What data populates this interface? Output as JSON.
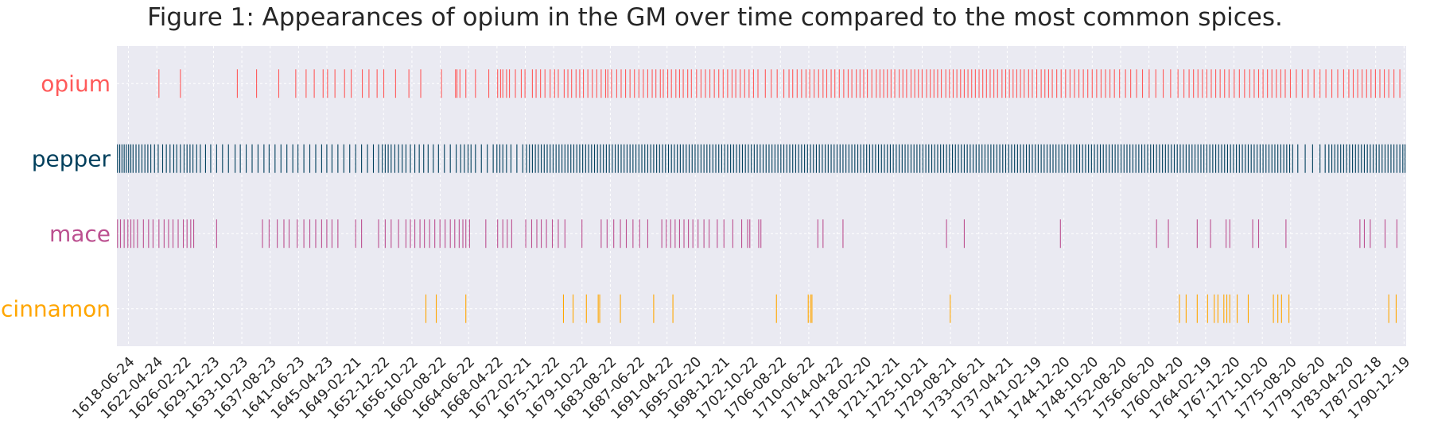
{
  "title": "Figure 1: Appearances of opium in the GM over time compared to the most common spices.",
  "colors": {
    "background": "#eaeaf2",
    "grid": "#ffffff",
    "text": "#262626"
  },
  "chart_data": {
    "type": "eventplot",
    "title": "Figure 1: Appearances of opium in the GM over time compared to the most common spices.",
    "xlabel": "",
    "ylabel": "",
    "xlim": [
      "1616-12-01",
      "1791-04-01"
    ],
    "grid": true,
    "x_ticks": [
      "1618-06-24",
      "1622-04-24",
      "1626-02-22",
      "1629-12-23",
      "1633-10-23",
      "1637-08-23",
      "1641-06-23",
      "1645-04-23",
      "1649-02-21",
      "1652-12-22",
      "1656-10-22",
      "1660-08-22",
      "1664-06-22",
      "1668-04-22",
      "1672-02-21",
      "1675-12-22",
      "1679-10-22",
      "1683-08-22",
      "1687-06-22",
      "1691-04-22",
      "1695-02-20",
      "1698-12-21",
      "1702-10-22",
      "1706-08-22",
      "1710-06-22",
      "1714-04-22",
      "1718-02-20",
      "1721-12-21",
      "1725-10-21",
      "1729-08-21",
      "1733-06-21",
      "1737-04-21",
      "1741-02-19",
      "1744-12-20",
      "1748-10-20",
      "1752-08-20",
      "1756-06-20",
      "1760-04-20",
      "1764-02-19",
      "1767-12-20",
      "1771-10-20",
      "1775-08-20",
      "1779-06-20",
      "1783-04-20",
      "1787-02-18",
      "1790-12-19"
    ],
    "series": [
      {
        "name": "opium",
        "color": "#ff5a5a",
        "years": [
          1622.6,
          1625.5,
          1633.2,
          1635.8,
          1638.8,
          1641.1,
          1642.5,
          1643.6,
          1644.8,
          1645.4,
          1646.4,
          1647.7,
          1648.6,
          1650.1,
          1651.0,
          1652.1,
          1653.0,
          1654.6,
          1656.4,
          1658.0,
          1660.8,
          1662.7,
          1662.9,
          1663.3,
          1664.1,
          1665.4,
          1667.2,
          1668.4,
          1668.8,
          1669.1,
          1669.6,
          1670.0,
          1670.8,
          1671.6,
          1672.1,
          1673.1,
          1673.6,
          1674.2,
          1674.8,
          1675.5,
          1676.1,
          1676.6,
          1677.4,
          1677.9,
          1678.4,
          1679.0,
          1679.5,
          1680.0,
          1680.6,
          1681.2,
          1681.8,
          1682.4,
          1683.0,
          1683.3,
          1683.8,
          1684.5,
          1685.1,
          1685.7,
          1686.3,
          1686.9,
          1687.5,
          1688.1,
          1688.7,
          1689.3,
          1689.8,
          1690.4,
          1690.8,
          1691.4,
          1691.9,
          1692.5,
          1693.0,
          1693.5,
          1694.1,
          1694.6,
          1695.3,
          1695.9,
          1696.5,
          1697.1,
          1697.7,
          1698.3,
          1698.9,
          1699.5,
          1700.1,
          1700.6,
          1701.2,
          1701.8,
          1702.4,
          1703.0,
          1703.6,
          1704.6,
          1705.4,
          1706.2,
          1707.1,
          1707.8,
          1708.3,
          1708.9,
          1709.5,
          1710.1,
          1710.6,
          1711.2,
          1711.8,
          1712.4,
          1712.9,
          1713.5,
          1714.0,
          1714.6,
          1715.2,
          1715.8,
          1716.3,
          1716.9,
          1717.4,
          1717.9,
          1718.4,
          1719.0,
          1719.6,
          1720.1,
          1720.6,
          1721.1,
          1721.6,
          1722.1,
          1722.7,
          1723.2,
          1723.7,
          1724.3,
          1724.8,
          1725.3,
          1725.8,
          1726.4,
          1726.9,
          1727.4,
          1727.9,
          1728.4,
          1729.0,
          1729.5,
          1730.0,
          1730.5,
          1731.0,
          1731.5,
          1732.0,
          1732.5,
          1733.0,
          1733.5,
          1734.0,
          1734.5,
          1735.0,
          1735.5,
          1736.0,
          1736.6,
          1737.1,
          1737.6,
          1738.1,
          1738.6,
          1739.1,
          1739.6,
          1740.2,
          1740.7,
          1741.3,
          1741.9,
          1742.4,
          1742.9,
          1743.4,
          1744.0,
          1744.6,
          1745.2,
          1745.8,
          1746.4,
          1747.0,
          1747.6,
          1748.2,
          1748.8,
          1749.4,
          1750.0,
          1750.6,
          1751.2,
          1751.8,
          1752.5,
          1753.3,
          1754.0,
          1754.8,
          1755.6,
          1756.5,
          1757.4,
          1758.4,
          1759.4,
          1760.4,
          1761.2,
          1761.9,
          1762.5,
          1763.1,
          1763.7,
          1764.3,
          1764.9,
          1765.5,
          1766.1,
          1766.7,
          1767.3,
          1768.0,
          1768.7,
          1769.4,
          1770.1,
          1770.7,
          1771.3,
          1771.9,
          1772.5,
          1773.1,
          1773.7,
          1774.3,
          1774.9,
          1775.6,
          1776.4,
          1777.2,
          1778.0,
          1778.8,
          1779.6,
          1780.4,
          1781.2,
          1782.0,
          1782.8,
          1783.5,
          1784.1,
          1784.7,
          1785.3,
          1785.9,
          1786.5,
          1787.1,
          1787.7,
          1788.3,
          1788.9,
          1789.6,
          1790.4
        ]
      },
      {
        "name": "pepper",
        "color": "#003f5c",
        "years": [
          1617.0,
          1617.3,
          1617.6,
          1617.9,
          1618.2,
          1618.5,
          1618.8,
          1619.1,
          1619.5,
          1619.9,
          1620.3,
          1620.7,
          1621.1,
          1621.5,
          1622.0,
          1622.5,
          1623.1,
          1623.6,
          1624.1,
          1624.6,
          1625.0,
          1625.5,
          1626.0,
          1626.4,
          1626.8,
          1627.2,
          1627.7,
          1628.2,
          1628.9,
          1629.6,
          1630.4,
          1631.2,
          1632.0,
          1632.9,
          1633.6,
          1634.4,
          1635.2,
          1636.0,
          1636.8,
          1637.5,
          1638.3,
          1639.1,
          1639.9,
          1640.7,
          1641.4,
          1642.2,
          1643.0,
          1643.8,
          1644.6,
          1645.3,
          1646.0,
          1646.8,
          1647.6,
          1648.4,
          1649.2,
          1650.0,
          1650.8,
          1651.6,
          1652.3,
          1652.8,
          1653.2,
          1653.6,
          1654.0,
          1654.5,
          1655.0,
          1655.5,
          1656.0,
          1656.6,
          1657.2,
          1657.8,
          1658.4,
          1659.0,
          1659.7,
          1660.4,
          1661.2,
          1662.0,
          1662.8,
          1663.4,
          1663.9,
          1664.4,
          1664.8,
          1665.4,
          1666.2,
          1667.0,
          1667.8,
          1668.3,
          1668.7,
          1669.1,
          1669.6,
          1670.2,
          1671.0,
          1671.8,
          1672.3,
          1672.7,
          1673.1,
          1673.5,
          1673.9,
          1674.3,
          1674.7,
          1675.1,
          1675.5,
          1675.9,
          1676.3,
          1676.7,
          1677.1,
          1677.5,
          1677.9,
          1678.3,
          1678.7,
          1679.1,
          1679.5,
          1679.9,
          1680.3,
          1680.7,
          1681.1,
          1681.5,
          1681.9,
          1682.3,
          1682.7,
          1683.1,
          1683.5,
          1683.9,
          1684.3,
          1684.7,
          1685.1,
          1685.5,
          1685.9,
          1686.3,
          1686.7,
          1687.1,
          1687.5,
          1687.9,
          1688.3,
          1688.7,
          1689.1,
          1689.5,
          1689.9,
          1690.3,
          1690.7,
          1691.1,
          1691.5,
          1691.9,
          1692.3,
          1692.7,
          1693.1,
          1693.5,
          1693.9,
          1694.3,
          1694.7,
          1695.1,
          1695.5,
          1695.9,
          1696.3,
          1696.7,
          1697.1,
          1697.5,
          1697.9,
          1698.3,
          1698.7,
          1699.1,
          1699.5,
          1699.9,
          1700.3,
          1700.7,
          1701.1,
          1701.5,
          1701.9,
          1702.3,
          1702.7,
          1703.1,
          1703.5,
          1703.9,
          1704.3,
          1704.7,
          1705.1,
          1705.5,
          1705.9,
          1706.3,
          1706.7,
          1707.1,
          1707.5,
          1707.9,
          1708.3,
          1708.7,
          1709.1,
          1709.5,
          1709.9,
          1710.3,
          1710.7,
          1711.1,
          1711.5,
          1711.9,
          1712.3,
          1712.7,
          1713.1,
          1713.5,
          1713.9,
          1714.3,
          1714.7,
          1715.1,
          1715.5,
          1715.9,
          1716.3,
          1716.7,
          1717.1,
          1717.5,
          1717.9,
          1718.3,
          1718.7,
          1719.1,
          1719.5,
          1719.9,
          1720.3,
          1720.7,
          1721.1,
          1721.5,
          1721.9,
          1722.3,
          1722.7,
          1723.1,
          1723.5,
          1723.9,
          1724.3,
          1724.7,
          1725.1,
          1725.5,
          1725.9,
          1726.3,
          1726.7,
          1727.1,
          1727.5,
          1727.9,
          1728.3,
          1728.7,
          1729.1,
          1729.5,
          1729.9,
          1730.3,
          1730.7,
          1731.1,
          1731.5,
          1731.9,
          1732.3,
          1732.7,
          1733.1,
          1733.5,
          1733.9,
          1734.3,
          1734.7,
          1735.1,
          1735.5,
          1735.9,
          1736.3,
          1736.7,
          1737.1,
          1737.5,
          1737.9,
          1738.3,
          1738.7,
          1739.1,
          1739.5,
          1739.9,
          1740.3,
          1740.7,
          1741.1,
          1741.5,
          1741.9,
          1742.3,
          1742.7,
          1743.1,
          1743.5,
          1743.9,
          1744.3,
          1744.7,
          1745.1,
          1745.5,
          1745.9,
          1746.3,
          1746.7,
          1747.1,
          1747.5,
          1747.9,
          1748.3,
          1748.7,
          1749.1,
          1749.5,
          1749.9,
          1750.3,
          1750.7,
          1751.1,
          1751.5,
          1751.9,
          1752.3,
          1752.7,
          1753.1,
          1753.5,
          1753.9,
          1754.3,
          1754.7,
          1755.1,
          1755.5,
          1755.9,
          1756.3,
          1756.7,
          1757.1,
          1757.5,
          1757.9,
          1758.3,
          1758.7,
          1759.1,
          1759.5,
          1759.9,
          1760.3,
          1760.7,
          1761.1,
          1761.5,
          1761.9,
          1762.3,
          1762.7,
          1763.1,
          1763.5,
          1763.9,
          1764.3,
          1764.7,
          1765.1,
          1765.5,
          1765.9,
          1766.3,
          1766.7,
          1767.1,
          1767.5,
          1767.9,
          1768.3,
          1768.7,
          1769.1,
          1769.5,
          1769.9,
          1770.3,
          1770.7,
          1771.1,
          1771.5,
          1771.9,
          1772.3,
          1772.7,
          1773.1,
          1773.5,
          1773.9,
          1774.3,
          1774.7,
          1775.1,
          1775.5,
          1775.9,
          1776.6,
          1777.6,
          1778.6,
          1779.6,
          1780.3,
          1780.8,
          1781.2,
          1781.6,
          1782.0,
          1782.4,
          1782.8,
          1783.2,
          1783.6,
          1784.0,
          1784.4,
          1784.8,
          1785.2,
          1785.6,
          1786.0,
          1786.4,
          1786.8,
          1787.2,
          1787.6,
          1788.0,
          1788.4,
          1788.8,
          1789.2,
          1789.6,
          1790.0,
          1790.4,
          1790.8,
          1791.1
        ]
      },
      {
        "name": "mace",
        "color": "#bc5090",
        "years": [
          1617.0,
          1617.4,
          1617.9,
          1618.4,
          1618.8,
          1619.2,
          1619.7,
          1620.5,
          1621.2,
          1621.8,
          1622.6,
          1623.3,
          1623.9,
          1624.5,
          1625.2,
          1625.9,
          1626.4,
          1626.9,
          1627.3,
          1630.4,
          1636.6,
          1637.5,
          1638.6,
          1639.5,
          1640.2,
          1641.3,
          1642.2,
          1643.0,
          1643.8,
          1644.6,
          1645.3,
          1646.0,
          1646.8,
          1649.2,
          1650.0,
          1652.3,
          1653.2,
          1654.0,
          1655.0,
          1656.0,
          1656.6,
          1657.2,
          1657.9,
          1658.5,
          1659.2,
          1659.9,
          1660.6,
          1661.3,
          1662.0,
          1662.6,
          1663.2,
          1663.7,
          1664.1,
          1664.6,
          1666.8,
          1668.4,
          1669.1,
          1669.7,
          1670.3,
          1672.2,
          1673.0,
          1673.7,
          1674.3,
          1675.0,
          1675.8,
          1676.6,
          1677.5,
          1679.8,
          1682.4,
          1683.2,
          1684.1,
          1685.0,
          1685.8,
          1686.7,
          1687.6,
          1688.7,
          1690.6,
          1691.2,
          1691.8,
          1692.4,
          1693.0,
          1693.6,
          1694.2,
          1694.8,
          1695.5,
          1696.3,
          1697.0,
          1698.1,
          1699.0,
          1700.2,
          1701.4,
          1702.2,
          1702.5,
          1703.7,
          1704.0,
          1711.7,
          1712.4,
          1715.1,
          1729.1,
          1731.5,
          1744.5,
          1757.5,
          1759.1,
          1763.0,
          1764.8,
          1766.9,
          1767.4,
          1770.5,
          1771.3,
          1775.0,
          1785.0,
          1785.6,
          1786.4,
          1788.4,
          1790.0
        ]
      },
      {
        "name": "cinnamon",
        "color": "#ffa600",
        "years": [
          1658.7,
          1660.1,
          1664.1,
          1677.3,
          1678.6,
          1680.4,
          1682.0,
          1682.2,
          1685.0,
          1689.5,
          1692.1,
          1706.1,
          1710.4,
          1710.7,
          1710.9,
          1729.6,
          1760.6,
          1761.5,
          1763.0,
          1764.4,
          1765.3,
          1765.8,
          1766.6,
          1767.0,
          1767.4,
          1768.4,
          1769.9,
          1773.3,
          1773.9,
          1774.4,
          1775.4,
          1788.9,
          1789.9
        ]
      }
    ]
  }
}
